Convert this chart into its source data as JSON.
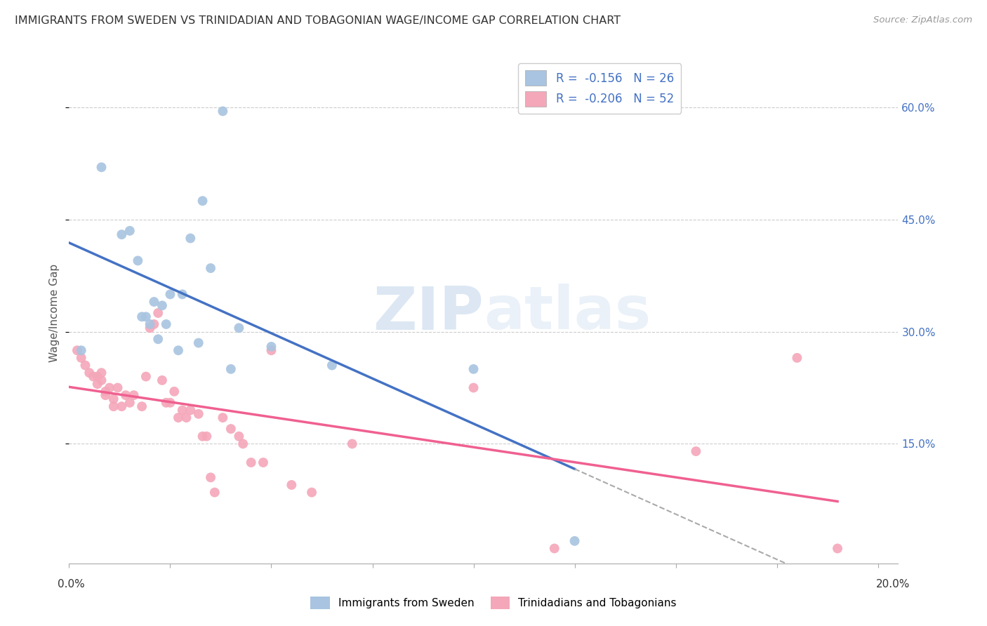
{
  "title": "IMMIGRANTS FROM SWEDEN VS TRINIDADIAN AND TOBAGONIAN WAGE/INCOME GAP CORRELATION CHART",
  "source": "Source: ZipAtlas.com",
  "ylabel": "Wage/Income Gap",
  "color_sweden": "#a8c4e0",
  "color_trinidad": "#f4a7b9",
  "line_color_sweden": "#4472c4",
  "line_color_trinidad": "#f06090",
  "line_color_dashed": "#aaaaaa",
  "xlim": [
    0.0,
    0.205
  ],
  "ylim": [
    -0.01,
    0.66
  ],
  "ytick_values": [
    0.15,
    0.3,
    0.45,
    0.6
  ],
  "ytick_labels": [
    "15.0%",
    "30.0%",
    "45.0%",
    "60.0%"
  ],
  "legend_R1": "R =  -0.156",
  "legend_N1": "N = 26",
  "legend_R2": "R =  -0.206",
  "legend_N2": "N = 52",
  "watermark_zip": "ZIP",
  "watermark_atlas": "atlas",
  "sweden_x": [
    0.003,
    0.008,
    0.013,
    0.015,
    0.017,
    0.018,
    0.019,
    0.02,
    0.021,
    0.022,
    0.023,
    0.024,
    0.025,
    0.027,
    0.028,
    0.03,
    0.032,
    0.033,
    0.035,
    0.038,
    0.04,
    0.042,
    0.05,
    0.065,
    0.1,
    0.125
  ],
  "sweden_y": [
    0.275,
    0.52,
    0.43,
    0.435,
    0.395,
    0.32,
    0.32,
    0.31,
    0.34,
    0.29,
    0.335,
    0.31,
    0.35,
    0.275,
    0.35,
    0.425,
    0.285,
    0.475,
    0.385,
    0.595,
    0.25,
    0.305,
    0.28,
    0.255,
    0.25,
    0.02
  ],
  "trinidad_x": [
    0.002,
    0.003,
    0.004,
    0.005,
    0.006,
    0.007,
    0.007,
    0.008,
    0.008,
    0.009,
    0.009,
    0.01,
    0.011,
    0.011,
    0.012,
    0.013,
    0.014,
    0.015,
    0.016,
    0.018,
    0.019,
    0.02,
    0.021,
    0.022,
    0.023,
    0.024,
    0.025,
    0.026,
    0.027,
    0.028,
    0.029,
    0.03,
    0.032,
    0.033,
    0.034,
    0.035,
    0.036,
    0.038,
    0.04,
    0.042,
    0.043,
    0.045,
    0.048,
    0.05,
    0.055,
    0.06,
    0.07,
    0.1,
    0.12,
    0.155,
    0.18,
    0.19
  ],
  "trinidad_y": [
    0.275,
    0.265,
    0.255,
    0.245,
    0.24,
    0.23,
    0.24,
    0.235,
    0.245,
    0.22,
    0.215,
    0.225,
    0.2,
    0.21,
    0.225,
    0.2,
    0.215,
    0.205,
    0.215,
    0.2,
    0.24,
    0.305,
    0.31,
    0.325,
    0.235,
    0.205,
    0.205,
    0.22,
    0.185,
    0.195,
    0.185,
    0.195,
    0.19,
    0.16,
    0.16,
    0.105,
    0.085,
    0.185,
    0.17,
    0.16,
    0.15,
    0.125,
    0.125,
    0.275,
    0.095,
    0.085,
    0.15,
    0.225,
    0.01,
    0.14,
    0.265,
    0.01
  ]
}
